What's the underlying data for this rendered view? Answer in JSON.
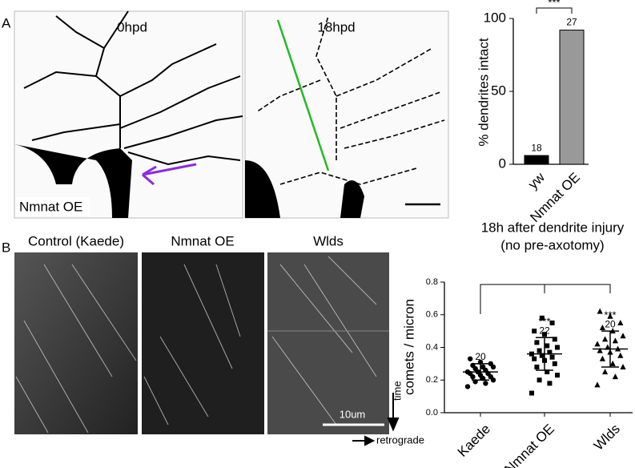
{
  "panel_labels": [
    "A",
    "B"
  ],
  "images": {
    "a_titles": [
      "0hpd",
      "18hpd"
    ],
    "a_note": "Nmnat OE",
    "b_titles": [
      "Control (Kaede)",
      "Nmnat OE",
      "Wlds"
    ],
    "scale": "10um",
    "time": "time",
    "retrograde": "retrograde"
  },
  "chart_data": [
    {
      "type": "bar",
      "ylabel": "% dendrites intact",
      "xlabel": [
        "18h after dendrite injury",
        "(no pre-axotomy)"
      ],
      "categories": [
        "yw",
        "Nmnat OE"
      ],
      "values": [
        6,
        92
      ],
      "colors": [
        "#000000",
        "#999999"
      ],
      "n_labels": [
        "18",
        "27"
      ],
      "significance": "***",
      "ylim": [
        0,
        100
      ],
      "yticks": [
        0,
        50,
        100
      ]
    },
    {
      "type": "scatter",
      "ylabel": "comets / micron",
      "categories": [
        "Kaede",
        "Nmnat OE",
        "Wlds"
      ],
      "markers": [
        "circle",
        "square",
        "triangle"
      ],
      "values": [
        [
          0.16,
          0.18,
          0.19,
          0.2,
          0.21,
          0.22,
          0.22,
          0.23,
          0.24,
          0.24,
          0.25,
          0.25,
          0.26,
          0.27,
          0.28,
          0.28,
          0.29,
          0.3,
          0.31,
          0.33
        ],
        [
          0.12,
          0.18,
          0.2,
          0.23,
          0.25,
          0.28,
          0.3,
          0.32,
          0.33,
          0.34,
          0.35,
          0.36,
          0.37,
          0.38,
          0.4,
          0.41,
          0.43,
          0.45,
          0.48,
          0.5,
          0.55,
          0.58
        ],
        [
          0.17,
          0.22,
          0.25,
          0.28,
          0.3,
          0.33,
          0.35,
          0.37,
          0.38,
          0.39,
          0.4,
          0.42,
          0.44,
          0.45,
          0.47,
          0.5,
          0.52,
          0.55,
          0.59,
          0.62
        ]
      ],
      "mean": [
        0.25,
        0.36,
        0.39
      ],
      "sd": [
        0.05,
        0.1,
        0.11
      ],
      "n_labels": [
        "20",
        "22",
        "20"
      ],
      "significance": [
        null,
        "***",
        "***"
      ],
      "ylim": [
        0,
        0.8
      ],
      "yticks": [
        {
          "value": 0,
          "label": "0.0"
        },
        0.2,
        0.4,
        0.6,
        0.8
      ]
    }
  ]
}
